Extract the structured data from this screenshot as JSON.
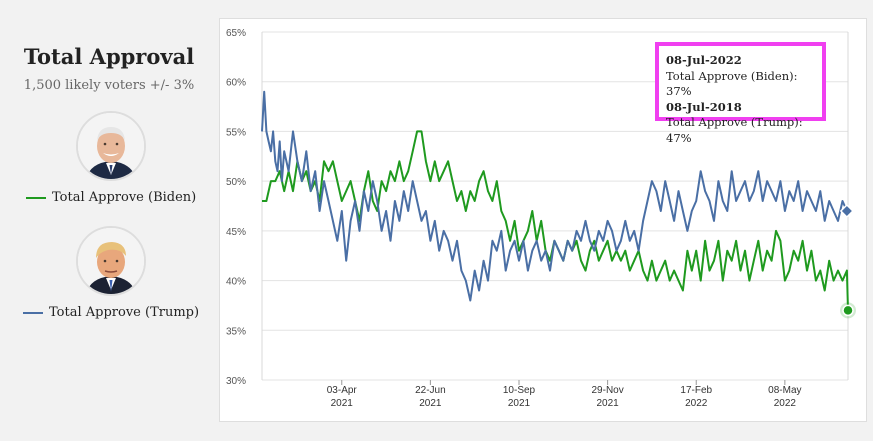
{
  "panel": {
    "title": "Total Approval",
    "subtitle": "1,500 likely voters +/- 3%"
  },
  "legend": [
    {
      "label": "Total Approve (Biden)",
      "color": "#1f9a1f"
    },
    {
      "label": "Total Approve (Trump)",
      "color": "#4a6fa5"
    }
  ],
  "tooltip": {
    "date1": "08-Jul-2022",
    "line1": "Total Approve (Biden): 37%",
    "date2": "08-Jul-2018",
    "line2": "Total Approve (Trump): 47%"
  },
  "chart_data": {
    "type": "line",
    "ylim": [
      30,
      65
    ],
    "y_ticks": [
      "30%",
      "35%",
      "40%",
      "45%",
      "50%",
      "55%",
      "60%",
      "65%"
    ],
    "x_ticks": [
      {
        "label": "03-Apr",
        "year": "2021",
        "day": 72
      },
      {
        "label": "22-Jun",
        "year": "2021",
        "day": 152
      },
      {
        "label": "10-Sep",
        "year": "2021",
        "day": 232
      },
      {
        "label": "29-Nov",
        "year": "2021",
        "day": 312
      },
      {
        "label": "17-Feb",
        "year": "2022",
        "day": 392
      },
      {
        "label": "08-May",
        "year": "2022",
        "day": 472
      }
    ],
    "xlim_days": [
      0,
      529
    ],
    "grid": true,
    "series": [
      {
        "name": "Total Approve (Biden)",
        "color": "#1f9a1f",
        "x": [
          0,
          4,
          8,
          12,
          16,
          20,
          24,
          28,
          32,
          36,
          40,
          44,
          48,
          52,
          56,
          60,
          64,
          68,
          72,
          76,
          80,
          84,
          88,
          92,
          96,
          100,
          104,
          108,
          112,
          116,
          120,
          124,
          128,
          132,
          136,
          140,
          144,
          148,
          152,
          156,
          160,
          164,
          168,
          172,
          176,
          180,
          184,
          188,
          192,
          196,
          200,
          204,
          208,
          212,
          216,
          220,
          224,
          228,
          232,
          236,
          240,
          244,
          248,
          252,
          256,
          260,
          264,
          268,
          272,
          276,
          280,
          284,
          288,
          292,
          296,
          300,
          304,
          308,
          312,
          316,
          320,
          324,
          328,
          332,
          336,
          340,
          344,
          348,
          352,
          356,
          360,
          364,
          368,
          372,
          376,
          380,
          384,
          388,
          392,
          396,
          400,
          404,
          408,
          412,
          416,
          420,
          424,
          428,
          432,
          436,
          440,
          444,
          448,
          452,
          456,
          460,
          464,
          468,
          472,
          476,
          480,
          484,
          488,
          492,
          496,
          500,
          504,
          508,
          512,
          516,
          520,
          524,
          528,
          529
        ],
        "values": [
          48,
          48,
          50,
          50,
          51,
          49,
          51,
          49,
          52,
          50,
          51,
          49,
          50,
          48,
          52,
          51,
          52,
          50,
          48,
          49,
          50,
          48,
          46,
          49,
          51,
          48,
          47,
          50,
          49,
          51,
          50,
          52,
          50,
          51,
          53,
          55,
          55,
          52,
          50,
          52,
          50,
          51,
          52,
          50,
          48,
          49,
          47,
          49,
          48,
          50,
          51,
          49,
          48,
          50,
          47,
          46,
          44,
          46,
          43,
          44,
          45,
          47,
          44,
          46,
          43,
          42,
          44,
          43,
          42,
          44,
          43,
          44,
          42,
          41,
          43,
          44,
          42,
          43,
          44,
          42,
          43,
          42,
          43,
          41,
          42,
          43,
          41,
          40,
          42,
          40,
          41,
          42,
          40,
          41,
          40,
          39,
          43,
          41,
          43,
          40,
          44,
          41,
          42,
          44,
          40,
          43,
          42,
          44,
          41,
          43,
          40,
          42,
          44,
          41,
          43,
          42,
          45,
          44,
          40,
          41,
          43,
          42,
          44,
          41,
          43,
          40,
          41,
          39,
          42,
          40,
          41,
          40,
          41,
          37
        ]
      },
      {
        "name": "Total Approve (Trump)",
        "color": "#4a6fa5",
        "x": [
          0,
          2,
          4,
          6,
          8,
          10,
          12,
          14,
          16,
          18,
          20,
          24,
          28,
          32,
          36,
          40,
          44,
          48,
          52,
          56,
          60,
          64,
          68,
          72,
          76,
          80,
          84,
          88,
          92,
          96,
          100,
          104,
          108,
          112,
          116,
          120,
          124,
          128,
          132,
          136,
          140,
          144,
          148,
          152,
          156,
          160,
          164,
          168,
          172,
          176,
          180,
          184,
          188,
          192,
          196,
          200,
          204,
          208,
          212,
          216,
          220,
          224,
          228,
          232,
          236,
          240,
          244,
          248,
          252,
          256,
          260,
          264,
          268,
          272,
          276,
          280,
          284,
          288,
          292,
          296,
          300,
          304,
          308,
          312,
          316,
          320,
          324,
          328,
          332,
          336,
          340,
          344,
          348,
          352,
          356,
          360,
          364,
          368,
          372,
          376,
          380,
          384,
          388,
          392,
          396,
          400,
          404,
          408,
          412,
          416,
          420,
          424,
          428,
          432,
          436,
          440,
          444,
          448,
          452,
          456,
          460,
          464,
          468,
          472,
          476,
          480,
          484,
          488,
          492,
          496,
          500,
          504,
          508,
          512,
          516,
          520,
          524,
          528
        ],
        "values": [
          55,
          59,
          55,
          54,
          53,
          55,
          52,
          51,
          54,
          50,
          53,
          51,
          55,
          52,
          50,
          53,
          49,
          51,
          47,
          50,
          48,
          46,
          44,
          47,
          42,
          46,
          48,
          45,
          49,
          47,
          50,
          48,
          45,
          47,
          44,
          48,
          46,
          49,
          47,
          50,
          48,
          46,
          47,
          44,
          46,
          43,
          45,
          44,
          42,
          44,
          41,
          40,
          38,
          41,
          39,
          42,
          40,
          44,
          43,
          45,
          41,
          43,
          44,
          42,
          44,
          41,
          43,
          44,
          42,
          43,
          41,
          44,
          43,
          42,
          44,
          43,
          45,
          44,
          46,
          44,
          43,
          45,
          44,
          46,
          45,
          43,
          44,
          46,
          44,
          45,
          43,
          46,
          48,
          50,
          49,
          47,
          50,
          48,
          46,
          49,
          47,
          45,
          47,
          48,
          51,
          49,
          48,
          46,
          50,
          48,
          47,
          51,
          48,
          49,
          50,
          48,
          49,
          51,
          48,
          50,
          49,
          48,
          50,
          47,
          49,
          48,
          50,
          47,
          49,
          48,
          47,
          49,
          46,
          48,
          47,
          46,
          48,
          47
        ]
      }
    ]
  }
}
